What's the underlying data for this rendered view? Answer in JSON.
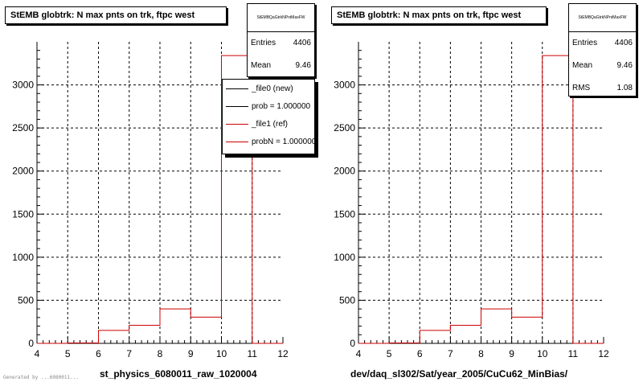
{
  "chart_data": [
    {
      "type": "bar",
      "style": "step-histogram",
      "title": "StEMB globtrk: N max pnts on trk, ftpc west",
      "xlabel": "st_physics_6080011_raw_1020004",
      "ylabel": "",
      "xlim": [
        4,
        12
      ],
      "ylim": [
        0,
        3500
      ],
      "x_ticks": [
        4,
        5,
        6,
        7,
        8,
        9,
        10,
        11,
        12
      ],
      "y_ticks": [
        0,
        500,
        1000,
        1500,
        2000,
        2500,
        3000
      ],
      "grid": true,
      "bin_edges": [
        4,
        5,
        6,
        7,
        8,
        9,
        10,
        11,
        12
      ],
      "series": [
        {
          "name": "_file1 (ref)",
          "color": "#cc0000",
          "values": [
            0,
            5,
            150,
            210,
            400,
            305,
            3340,
            0
          ]
        }
      ],
      "stats": {
        "name": "StEMBQaGtrkNPntMaxFW",
        "entries_label": "Entries",
        "entries": "4406",
        "mean_label": "Mean",
        "mean": "9.46"
      },
      "legend": {
        "placement": "top-right",
        "entries": [
          {
            "label": "_file0 (new)",
            "color": "#000000"
          },
          {
            "label": "prob = 1.000000",
            "color": "#000000"
          },
          {
            "label": "_file1 (ref)",
            "color": "#cc0000"
          },
          {
            "label": "probN = 1.000000",
            "color": "#cc0000"
          }
        ]
      }
    },
    {
      "type": "bar",
      "style": "step-histogram",
      "title": "StEMB globtrk: N max pnts on trk, ftpc west",
      "xlabel": "dev/daq_sl302/Sat/year_2005/CuCu62_MinBias/",
      "ylabel": "",
      "xlim": [
        4,
        12
      ],
      "ylim": [
        0,
        3500
      ],
      "x_ticks": [
        4,
        5,
        6,
        7,
        8,
        9,
        10,
        11,
        12
      ],
      "y_ticks": [
        0,
        500,
        1000,
        1500,
        2000,
        2500,
        3000
      ],
      "grid": true,
      "bin_edges": [
        4,
        5,
        6,
        7,
        8,
        9,
        10,
        11,
        12
      ],
      "series": [
        {
          "name": "",
          "color": "#cc0000",
          "values": [
            0,
            5,
            150,
            210,
            400,
            305,
            3340,
            0
          ]
        }
      ],
      "stats": {
        "name": "StEMBQaGtrkNPntMaxFW",
        "entries_label": "Entries",
        "entries": "4406",
        "mean_label": "Mean",
        "mean": "9.46",
        "rms_label": "RMS",
        "rms": "1.08"
      }
    }
  ],
  "footer": "Generated by ...6080011..."
}
